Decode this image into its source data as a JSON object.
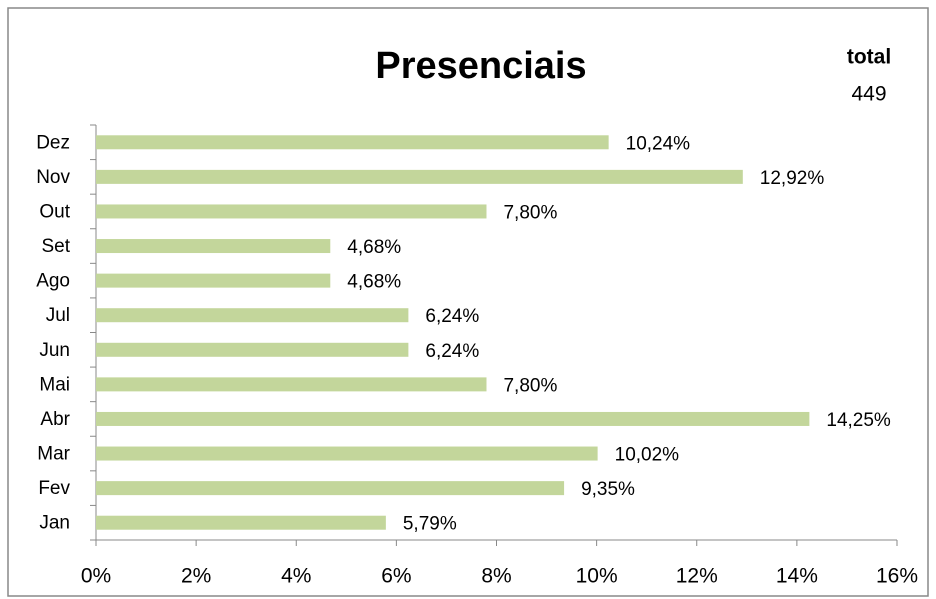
{
  "chart_data": {
    "type": "bar",
    "orientation": "horizontal",
    "title": "Presenciais",
    "annotations": [
      "total",
      "449"
    ],
    "categories": [
      "Jan",
      "Fev",
      "Mar",
      "Abr",
      "Mai",
      "Jun",
      "Jul",
      "Ago",
      "Set",
      "Out",
      "Nov",
      "Dez"
    ],
    "values": [
      5.79,
      9.35,
      10.02,
      14.25,
      7.8,
      6.24,
      6.24,
      4.68,
      4.68,
      7.8,
      12.92,
      10.24
    ],
    "value_labels": [
      "5,79%",
      "9,35%",
      "10,02%",
      "14,25%",
      "7,80%",
      "6,24%",
      "6,24%",
      "4,68%",
      "4,68%",
      "7,80%",
      "12,92%",
      "10,24%"
    ],
    "color": "#c3d69b",
    "xlim": [
      0,
      16
    ],
    "xticks": [
      {
        "value": 0,
        "label": "0%"
      },
      {
        "value": 2,
        "label": "2%"
      },
      {
        "value": 4,
        "label": "4%"
      },
      {
        "value": 6,
        "label": "6%"
      },
      {
        "value": 8,
        "label": "8%"
      },
      {
        "value": 10,
        "label": "10%"
      },
      {
        "value": 12,
        "label": "12%"
      },
      {
        "value": 14,
        "label": "14%"
      },
      {
        "value": 16,
        "label": "16%"
      }
    ],
    "grid": false
  }
}
